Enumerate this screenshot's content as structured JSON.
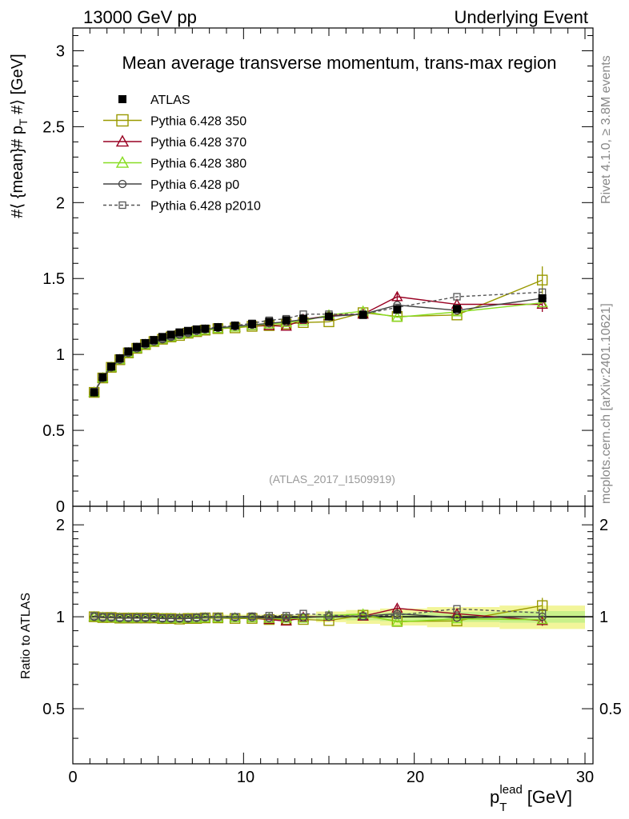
{
  "header": {
    "left": "13000 GeV pp",
    "right": "Underlying Event"
  },
  "side_text": {
    "rivet": "Rivet 4.1.0, ≥ 3.8M events",
    "mcplots": "mcplots.cern.ch [arXiv:2401.10621]"
  },
  "chart_data": [
    {
      "panel": "main",
      "type": "scatter",
      "title": "Mean average transverse momentum, trans-max region",
      "analysis_label": "(ATLAS_2017_I1509919)",
      "xlabel": "p_T^lead [GeV]",
      "ylabel": "#⟨ {mean}# p_T #⟩ [GeV]",
      "xlim": [
        0,
        30
      ],
      "ylim": [
        0,
        3.15
      ],
      "y_ticks": [
        "0",
        "0.5",
        "1",
        "1.5",
        "2",
        "2.5",
        "3"
      ],
      "x_ticks": [
        "0",
        "10",
        "20",
        "30"
      ],
      "x": [
        1.25,
        1.75,
        2.25,
        2.75,
        3.25,
        3.75,
        4.25,
        4.75,
        5.25,
        5.75,
        6.25,
        6.75,
        7.25,
        7.75,
        8.5,
        9.5,
        10.5,
        11.5,
        12.5,
        13.5,
        15.0,
        17.0,
        19.0,
        22.5,
        27.5
      ],
      "legend": [
        "ATLAS",
        "Pythia 6.428 350",
        "Pythia 6.428 370",
        "Pythia 6.428 380",
        "Pythia 6.428 p0",
        "Pythia 6.428 p2010"
      ],
      "series": [
        {
          "name": "ATLAS",
          "color": "#000000",
          "marker": "filled-square",
          "dash": "none",
          "values": [
            0.75,
            0.85,
            0.92,
            0.975,
            1.02,
            1.05,
            1.075,
            1.095,
            1.115,
            1.13,
            1.145,
            1.155,
            1.165,
            1.17,
            1.18,
            1.19,
            1.2,
            1.215,
            1.225,
            1.235,
            1.25,
            1.26,
            1.295,
            1.3,
            1.37
          ]
        },
        {
          "name": "Pythia 6.428 350",
          "color": "#999900",
          "marker": "open-square",
          "dash": "none",
          "values": [
            0.75,
            0.845,
            0.915,
            0.965,
            1.01,
            1.04,
            1.065,
            1.085,
            1.1,
            1.115,
            1.125,
            1.14,
            1.15,
            1.16,
            1.17,
            1.175,
            1.185,
            1.19,
            1.2,
            1.21,
            1.215,
            1.275,
            1.25,
            1.26,
            1.49
          ],
          "errors": [
            0,
            0,
            0,
            0,
            0,
            0,
            0,
            0,
            0,
            0,
            0,
            0,
            0,
            0,
            0,
            0,
            0,
            0,
            0,
            0,
            0,
            0,
            0,
            0,
            0.09
          ]
        },
        {
          "name": "Pythia 6.428 370",
          "color": "#990022",
          "marker": "open-triangle",
          "dash": "none",
          "values": [
            0.75,
            0.845,
            0.915,
            0.965,
            1.01,
            1.04,
            1.065,
            1.085,
            1.1,
            1.115,
            1.13,
            1.14,
            1.15,
            1.16,
            1.17,
            1.18,
            1.19,
            1.19,
            1.185,
            1.23,
            1.255,
            1.265,
            1.38,
            1.33,
            1.33
          ],
          "errors": [
            0,
            0,
            0,
            0,
            0,
            0,
            0,
            0,
            0,
            0,
            0,
            0,
            0,
            0,
            0,
            0,
            0,
            0,
            0,
            0,
            0,
            0,
            0.03,
            0,
            0.05
          ]
        },
        {
          "name": "Pythia 6.428 380",
          "color": "#88dd22",
          "marker": "open-triangle",
          "dash": "none",
          "values": [
            0.75,
            0.845,
            0.915,
            0.965,
            1.01,
            1.04,
            1.065,
            1.085,
            1.1,
            1.115,
            1.13,
            1.14,
            1.15,
            1.16,
            1.17,
            1.18,
            1.19,
            1.2,
            1.21,
            1.22,
            1.26,
            1.285,
            1.245,
            1.28,
            1.34
          ]
        },
        {
          "name": "Pythia 6.428 p0",
          "color": "#444444",
          "marker": "open-circle",
          "dash": "none",
          "values": [
            0.75,
            0.845,
            0.915,
            0.965,
            1.01,
            1.04,
            1.065,
            1.085,
            1.1,
            1.115,
            1.13,
            1.14,
            1.155,
            1.165,
            1.175,
            1.185,
            1.195,
            1.205,
            1.215,
            1.23,
            1.25,
            1.265,
            1.325,
            1.29,
            1.37
          ]
        },
        {
          "name": "Pythia 6.428 p2010",
          "color": "#555555",
          "marker": "open-square-small",
          "dash": "4,3",
          "values": [
            0.755,
            0.85,
            0.92,
            0.97,
            1.015,
            1.045,
            1.07,
            1.09,
            1.105,
            1.12,
            1.135,
            1.145,
            1.16,
            1.17,
            1.18,
            1.19,
            1.205,
            1.225,
            1.235,
            1.265,
            1.265,
            1.265,
            1.31,
            1.38,
            1.41
          ]
        }
      ]
    },
    {
      "panel": "ratio",
      "type": "line",
      "ylabel": "Ratio to ATLAS",
      "ylim": [
        0.33,
        2.3
      ],
      "y_ticks": [
        "0.5",
        "1",
        "2"
      ],
      "x_ticks": [
        "0",
        "10",
        "20",
        "30"
      ],
      "reference": 1.0,
      "band_note": "ATLAS uncertainty band (yellow/green) around 1"
    }
  ]
}
